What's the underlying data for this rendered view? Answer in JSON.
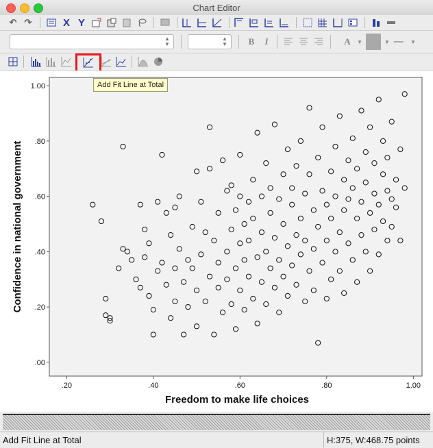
{
  "window": {
    "title": "Chart Editor"
  },
  "toolbar": {
    "row1_icons": [
      "undo-icon",
      "redo-icon",
      "properties-icon",
      "x-axis-icon",
      "y-axis-icon",
      "select-chart-icon",
      "select-frame-icon",
      "select-element-icon",
      "lasso-icon",
      "data-labels-icon",
      "reference-line-x-icon",
      "reference-line-y-icon",
      "reference-line-equation-icon",
      "title-icon",
      "annotation-icon",
      "text-box-icon",
      "footnote-icon",
      "grid-lines-icon",
      "grid-lines-major-icon",
      "show-derived-axis-icon",
      "legend-icon",
      "transpose-icon",
      "axis-arrange-icon"
    ],
    "row2": {
      "font_combo_value": "",
      "size_combo_value": "",
      "bold_label": "B",
      "italic_label": "I",
      "text_color_label": "A"
    },
    "row3_icons": [
      "select-all-icon",
      "histogram-icon",
      "bar-chart-icon",
      "line-chart-icon",
      "add-fit-line-icon",
      "add-interpolation-line-icon",
      "add-fit-line-subgroups-icon",
      "distribution-curve-icon",
      "pie-icon"
    ]
  },
  "tooltip": {
    "text": "Add Fit Line at Total"
  },
  "status": {
    "left": "Add Fit Line at Total",
    "right": "H:375, W:468.75 points"
  },
  "chart_data": {
    "type": "scatter",
    "xlabel": "Freedom to make life choices",
    "ylabel": "Confidence in national government",
    "xlim": [
      0.16,
      1.02
    ],
    "ylim": [
      -0.05,
      1.03
    ],
    "x_ticks": [
      ".20",
      ".40",
      ".60",
      ".80",
      "1.00"
    ],
    "y_ticks": [
      ".00",
      ".20",
      ".40",
      ".60",
      ".80",
      "1.00"
    ],
    "marker": "open-circle",
    "series": [
      {
        "values": [
          [
            0.26,
            0.57
          ],
          [
            0.28,
            0.51
          ],
          [
            0.29,
            0.17
          ],
          [
            0.29,
            0.23
          ],
          [
            0.3,
            0.15
          ],
          [
            0.3,
            0.16
          ],
          [
            0.32,
            0.34
          ],
          [
            0.33,
            0.41
          ],
          [
            0.34,
            0.4
          ],
          [
            0.33,
            0.78
          ],
          [
            0.35,
            0.37
          ],
          [
            0.36,
            0.3
          ],
          [
            0.37,
            0.27
          ],
          [
            0.37,
            0.57
          ],
          [
            0.38,
            0.38
          ],
          [
            0.38,
            0.48
          ],
          [
            0.39,
            0.43
          ],
          [
            0.39,
            0.24
          ],
          [
            0.4,
            0.19
          ],
          [
            0.4,
            0.1
          ],
          [
            0.41,
            0.33
          ],
          [
            0.41,
            0.58
          ],
          [
            0.42,
            0.75
          ],
          [
            0.42,
            0.36
          ],
          [
            0.43,
            0.54
          ],
          [
            0.43,
            0.28
          ],
          [
            0.44,
            0.16
          ],
          [
            0.44,
            0.46
          ],
          [
            0.45,
            0.22
          ],
          [
            0.45,
            0.34
          ],
          [
            0.45,
            0.56
          ],
          [
            0.46,
            0.6
          ],
          [
            0.46,
            0.41
          ],
          [
            0.47,
            0.29
          ],
          [
            0.47,
            0.1
          ],
          [
            0.48,
            0.37
          ],
          [
            0.48,
            0.2
          ],
          [
            0.49,
            0.34
          ],
          [
            0.49,
            0.49
          ],
          [
            0.5,
            0.26
          ],
          [
            0.5,
            0.13
          ],
          [
            0.5,
            0.69
          ],
          [
            0.51,
            0.58
          ],
          [
            0.51,
            0.39
          ],
          [
            0.52,
            0.22
          ],
          [
            0.52,
            0.47
          ],
          [
            0.53,
            0.85
          ],
          [
            0.53,
            0.31
          ],
          [
            0.53,
            0.7
          ],
          [
            0.54,
            0.1
          ],
          [
            0.54,
            0.44
          ],
          [
            0.55,
            0.54
          ],
          [
            0.55,
            0.27
          ],
          [
            0.55,
            0.36
          ],
          [
            0.56,
            0.73
          ],
          [
            0.56,
            0.18
          ],
          [
            0.57,
            0.62
          ],
          [
            0.57,
            0.4
          ],
          [
            0.57,
            0.3
          ],
          [
            0.58,
            0.48
          ],
          [
            0.58,
            0.21
          ],
          [
            0.58,
            0.64
          ],
          [
            0.59,
            0.34
          ],
          [
            0.59,
            0.55
          ],
          [
            0.59,
            0.12
          ],
          [
            0.6,
            0.43
          ],
          [
            0.6,
            0.26
          ],
          [
            0.6,
            0.6
          ],
          [
            0.6,
            0.75
          ],
          [
            0.61,
            0.37
          ],
          [
            0.61,
            0.5
          ],
          [
            0.61,
            0.19
          ],
          [
            0.62,
            0.58
          ],
          [
            0.62,
            0.31
          ],
          [
            0.62,
            0.44
          ],
          [
            0.63,
            0.66
          ],
          [
            0.63,
            0.23
          ],
          [
            0.63,
            0.52
          ],
          [
            0.64,
            0.38
          ],
          [
            0.64,
            0.83
          ],
          [
            0.64,
            0.14
          ],
          [
            0.65,
            0.47
          ],
          [
            0.65,
            0.29
          ],
          [
            0.65,
            0.6
          ],
          [
            0.66,
            0.4
          ],
          [
            0.66,
            0.72
          ],
          [
            0.66,
            0.21
          ],
          [
            0.67,
            0.54
          ],
          [
            0.67,
            0.34
          ],
          [
            0.67,
            0.63
          ],
          [
            0.68,
            0.45
          ],
          [
            0.68,
            0.27
          ],
          [
            0.68,
            0.86
          ],
          [
            0.69,
            0.59
          ],
          [
            0.69,
            0.37
          ],
          [
            0.69,
            0.18
          ],
          [
            0.7,
            0.5
          ],
          [
            0.7,
            0.68
          ],
          [
            0.7,
            0.31
          ],
          [
            0.71,
            0.42
          ],
          [
            0.71,
            0.77
          ],
          [
            0.71,
            0.24
          ],
          [
            0.72,
            0.57
          ],
          [
            0.72,
            0.35
          ],
          [
            0.72,
            0.63
          ],
          [
            0.73,
            0.46
          ],
          [
            0.73,
            0.28
          ],
          [
            0.73,
            0.71
          ],
          [
            0.74,
            0.52
          ],
          [
            0.74,
            0.39
          ],
          [
            0.74,
            0.8
          ],
          [
            0.75,
            0.61
          ],
          [
            0.75,
            0.22
          ],
          [
            0.75,
            0.44
          ],
          [
            0.76,
            0.68
          ],
          [
            0.76,
            0.33
          ],
          [
            0.76,
            0.92
          ],
          [
            0.77,
            0.55
          ],
          [
            0.77,
            0.41
          ],
          [
            0.77,
            0.26
          ],
          [
            0.78,
            0.74
          ],
          [
            0.78,
            0.49
          ],
          [
            0.78,
            0.07
          ],
          [
            0.79,
            0.62
          ],
          [
            0.79,
            0.36
          ],
          [
            0.79,
            0.85
          ],
          [
            0.8,
            0.57
          ],
          [
            0.8,
            0.44
          ],
          [
            0.8,
            0.23
          ],
          [
            0.81,
            0.69
          ],
          [
            0.81,
            0.52
          ],
          [
            0.81,
            0.3
          ],
          [
            0.82,
            0.78
          ],
          [
            0.82,
            0.6
          ],
          [
            0.82,
            0.4
          ],
          [
            0.83,
            0.89
          ],
          [
            0.83,
            0.47
          ],
          [
            0.83,
            0.33
          ],
          [
            0.84,
            0.66
          ],
          [
            0.84,
            0.55
          ],
          [
            0.84,
            0.25
          ],
          [
            0.85,
            0.73
          ],
          [
            0.85,
            0.43
          ],
          [
            0.85,
            0.59
          ],
          [
            0.86,
            0.81
          ],
          [
            0.86,
            0.37
          ],
          [
            0.86,
            0.63
          ],
          [
            0.87,
            0.52
          ],
          [
            0.87,
            0.7
          ],
          [
            0.87,
            0.29
          ],
          [
            0.88,
            0.91
          ],
          [
            0.88,
            0.46
          ],
          [
            0.88,
            0.58
          ],
          [
            0.89,
            0.76
          ],
          [
            0.89,
            0.4
          ],
          [
            0.89,
            0.65
          ],
          [
            0.9,
            0.54
          ],
          [
            0.9,
            0.85
          ],
          [
            0.9,
            0.33
          ],
          [
            0.91,
            0.61
          ],
          [
            0.91,
            0.72
          ],
          [
            0.91,
            0.48
          ],
          [
            0.92,
            0.95
          ],
          [
            0.92,
            0.57
          ],
          [
            0.92,
            0.39
          ],
          [
            0.93,
            0.68
          ],
          [
            0.93,
            0.8
          ],
          [
            0.93,
            0.51
          ],
          [
            0.94,
            0.62
          ],
          [
            0.94,
            0.44
          ],
          [
            0.94,
            0.74
          ],
          [
            0.95,
            0.59
          ],
          [
            0.95,
            0.87
          ],
          [
            0.95,
            0.49
          ],
          [
            0.96,
            0.66
          ],
          [
            0.96,
            0.56
          ],
          [
            0.97,
            0.77
          ],
          [
            0.97,
            0.44
          ],
          [
            0.98,
            0.63
          ],
          [
            0.98,
            0.97
          ]
        ]
      }
    ]
  }
}
